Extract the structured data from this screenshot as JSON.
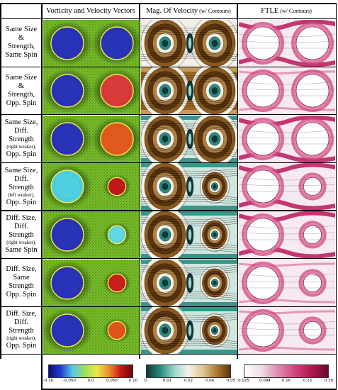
{
  "headers": [
    {
      "main": "Vorticity and Velocity Vectors",
      "note": ""
    },
    {
      "main": "Mag. Of Velocity",
      "note": "(w/ Contours)"
    },
    {
      "main": "FTLE",
      "note": "(w/ Contours)"
    }
  ],
  "rows": [
    {
      "lines": [
        "Same Size",
        "&",
        "Strength,",
        "Same Spin"
      ],
      "left": {
        "r": 1.0,
        "color": "#2833b8"
      },
      "right": {
        "r": 1.0,
        "color": "#2833b8"
      }
    },
    {
      "lines": [
        "Same Size",
        "&",
        "Strength,",
        "Opp. Spin"
      ],
      "left": {
        "r": 1.0,
        "color": "#2833b8"
      },
      "right": {
        "r": 1.0,
        "color": "#d93a3a"
      }
    },
    {
      "lines": [
        "Same Size,",
        "Diff.",
        "Strength",
        "(right weaker),",
        "Opp. Spin"
      ],
      "left": {
        "r": 1.0,
        "color": "#2833b8"
      },
      "right": {
        "r": 1.0,
        "color": "#e05a1e"
      }
    },
    {
      "lines": [
        "Same Size,",
        "Diff.",
        "Strength",
        "(left weaker),",
        "Opp. Spin"
      ],
      "left": {
        "r": 1.0,
        "color": "#4fd0e0"
      },
      "right": {
        "r": 0.55,
        "color": "#c01818"
      }
    },
    {
      "lines": [
        "Diff. Size,",
        "Diff.",
        "Strength",
        "(right weaker),",
        "Same Spin"
      ],
      "left": {
        "r": 1.0,
        "color": "#2833b8"
      },
      "right": {
        "r": 0.55,
        "color": "#5fd8e8"
      }
    },
    {
      "lines": [
        "Diff. Size,",
        "Same",
        "Strength",
        "Opp. Spin"
      ],
      "left": {
        "r": 1.0,
        "color": "#2833b8"
      },
      "right": {
        "r": 0.55,
        "color": "#c81e1e"
      }
    },
    {
      "lines": [
        "Diff. Size,",
        "Diff.",
        "Strength",
        "(right weaker),",
        "Opp. Spin"
      ],
      "left": {
        "r": 1.0,
        "color": "#2833b8"
      },
      "right": {
        "r": 0.55,
        "color": "#e0541a"
      }
    }
  ],
  "colorbars": [
    {
      "ticks": [
        "-0.10",
        "-0.050",
        "0.0",
        "0.050",
        "0.10"
      ],
      "stops": [
        "#0b0d78",
        "#1f3fd0",
        "#5cc8e8",
        "#9ae05a",
        "#e8e84a",
        "#f09030",
        "#c81818",
        "#6b0a0a"
      ]
    },
    {
      "ticks": [
        "0.",
        "0.01",
        "0.02",
        "0.04",
        "0.05"
      ],
      "stops": [
        "#0e3a36",
        "#2a8a80",
        "#9dd8cc",
        "#f4f2e8",
        "#e0c890",
        "#b07a30",
        "#5a3410"
      ]
    },
    {
      "ticks": [
        "0.025",
        "0.094",
        "0.16",
        "0.23",
        "0.30"
      ],
      "stops": [
        "#ffffff",
        "#f0dce8",
        "#e08ab0",
        "#d0447e",
        "#b01850",
        "#6a0a2a"
      ]
    }
  ]
}
